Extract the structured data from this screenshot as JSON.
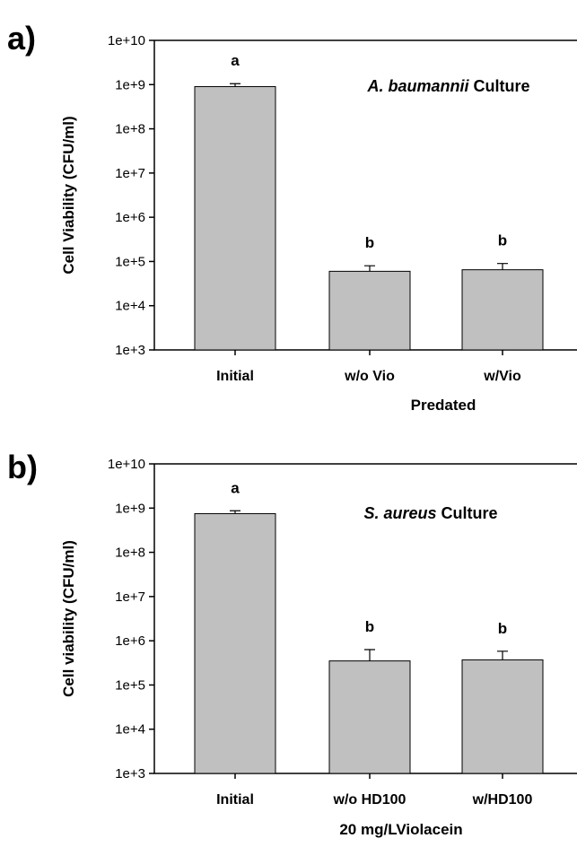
{
  "chart_data": [
    {
      "type": "bar",
      "panel_label": "a)",
      "title_italic": "A. baumannii",
      "title_rest": " Culture",
      "ylabel": "Cell Viability (CFU/ml)",
      "xlabel": "Predated",
      "yscale": "log",
      "ylim": [
        1000,
        10000000000
      ],
      "yticks": [
        "1e+3",
        "1e+4",
        "1e+5",
        "1e+6",
        "1e+7",
        "1e+8",
        "1e+9",
        "1e+10"
      ],
      "categories": [
        "Initial",
        "w/o Vio",
        "w/Vio"
      ],
      "values": [
        900000000,
        60000,
        65000
      ],
      "error_upper": [
        1050000000,
        80000,
        90000
      ],
      "significance": [
        "a",
        "b",
        "b"
      ]
    },
    {
      "type": "bar",
      "panel_label": "b)",
      "title_italic": "S. aureus",
      "title_rest": " Culture",
      "ylabel": "Cell viability (CFU/ml)",
      "xlabel": "20 mg/LViolacein",
      "yscale": "log",
      "ylim": [
        1000,
        10000000000
      ],
      "yticks": [
        "1e+3",
        "1e+4",
        "1e+5",
        "1e+6",
        "1e+7",
        "1e+8",
        "1e+9",
        "1e+10"
      ],
      "categories": [
        "Initial",
        "w/o HD100",
        "w/HD100"
      ],
      "values": [
        750000000,
        350000,
        370000
      ],
      "error_upper": [
        870000000,
        630000,
        580000
      ],
      "significance": [
        "a",
        "b",
        "b"
      ]
    }
  ]
}
